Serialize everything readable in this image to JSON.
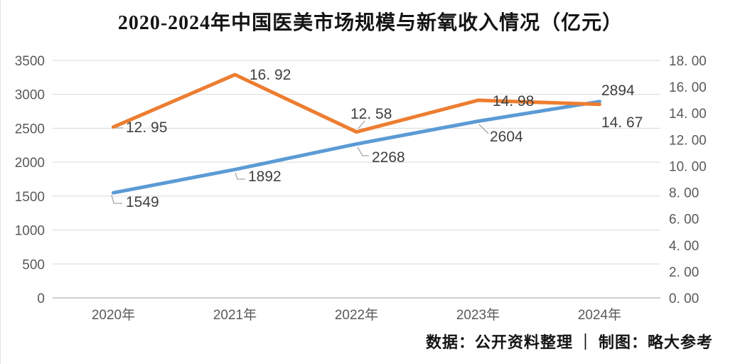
{
  "title": "2020-2024年中国医美市场规模与新氧收入情况（亿元）",
  "source_note": "数据：公开资料整理 ｜ 制图：略大参考",
  "colors": {
    "market_series": "#5B9BD5",
    "revenue_series": "#ED7D31",
    "gridline": "#D9D9D9",
    "axis_line": "#BFBFBF",
    "tick_text": "#595959",
    "data_label_text": "#404040",
    "leader_line": "#A6A6A6",
    "title_text": "#141414"
  },
  "chart_data": {
    "type": "line",
    "title": "2020-2024年中国医美市场规模与新氧收入情况（亿元）",
    "categories": [
      "2020年",
      "2021年",
      "2022年",
      "2023年",
      "2024年"
    ],
    "series": [
      {
        "name": "中国医美市场规模",
        "axis": "left",
        "color": "#5B9BD5",
        "values": [
          1549,
          1892,
          2268,
          2604,
          2894
        ],
        "labels": [
          "1549",
          "1892",
          "2268",
          "2604",
          "2894"
        ]
      },
      {
        "name": "新氧收入",
        "axis": "right",
        "color": "#ED7D31",
        "values": [
          12.95,
          16.92,
          12.58,
          14.98,
          14.67
        ],
        "labels": [
          "12. 95",
          "16. 92",
          "12. 58",
          "14. 98",
          "14. 67"
        ]
      }
    ],
    "left_axis": {
      "min": 0,
      "max": 3500,
      "step": 500,
      "tick_labels": [
        "0",
        "500",
        "1000",
        "1500",
        "2000",
        "2500",
        "3000",
        "3500"
      ]
    },
    "right_axis": {
      "min": 0,
      "max": 18,
      "step": 2,
      "tick_labels": [
        "0. 00",
        "2. 00",
        "4. 00",
        "6. 00",
        "8. 00",
        "10. 00",
        "12. 00",
        "14. 00",
        "16. 00",
        "18. 00"
      ]
    },
    "grid": true,
    "legend": "none",
    "unit": "亿元"
  }
}
